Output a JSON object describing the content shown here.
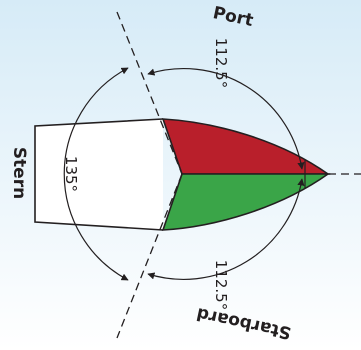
{
  "labels": {
    "port": "Port",
    "starboard": "Starboard",
    "stern": "Stern"
  },
  "angles": {
    "port_sector": "112.5°",
    "starboard_sector": "112.5°",
    "stern_sector": "135°"
  },
  "colors": {
    "background_top": "#d6ebf7",
    "background_bottom": "#ffffff",
    "port_light": "#b91f2b",
    "starboard_light": "#3aa548",
    "line": "#231f20"
  }
}
